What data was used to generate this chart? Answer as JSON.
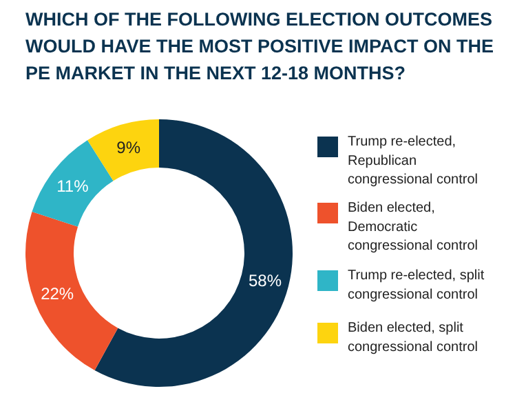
{
  "chart_data": {
    "type": "donut",
    "title": "WHICH OF THE FOLLOWING ELECTION OUTCOMES WOULD HAVE THE MOST POSITIVE IMPACT ON THE PE MARKET IN THE NEXT 12-18 MONTHS?",
    "categories": [
      "Trump re-elected, Republican congressional control",
      "Biden elected, Democratic congressional control",
      "Trump re-elected, split congressional control",
      "Biden elected, split congressional control"
    ],
    "values": [
      58,
      22,
      11,
      9
    ],
    "value_labels": [
      "58%",
      "22%",
      "11%",
      "9%"
    ],
    "colors": [
      "#0b3350",
      "#ee522c",
      "#2fb5c7",
      "#fdd40f"
    ],
    "legend": "right"
  }
}
